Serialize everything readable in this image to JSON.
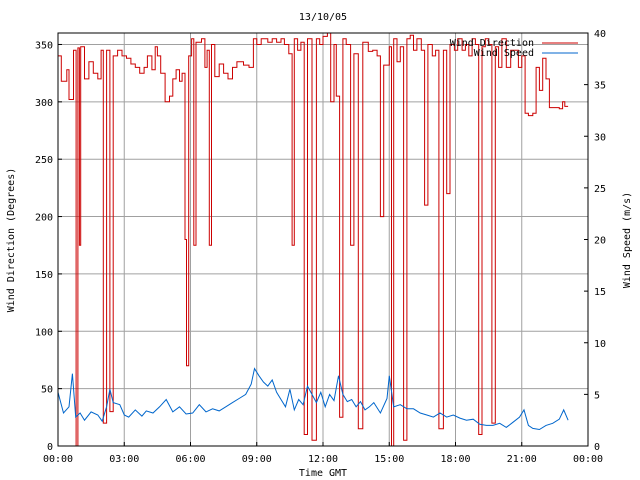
{
  "chart_data": {
    "type": "line",
    "title": "13/10/05",
    "xlabel": "Time GMT",
    "ylabel_left": "Wind Direction (Degrees)",
    "ylabel_right": "Wind Speed (m/s)",
    "x_unit": "hours GMT",
    "xlim": [
      0,
      24
    ],
    "ylim_left": [
      0,
      360
    ],
    "ylim_right": [
      0,
      40
    ],
    "x_ticks": [
      {
        "value": 0,
        "label": "00:00"
      },
      {
        "value": 3,
        "label": "03:00"
      },
      {
        "value": 6,
        "label": "06:00"
      },
      {
        "value": 9,
        "label": "09:00"
      },
      {
        "value": 12,
        "label": "12:00"
      },
      {
        "value": 15,
        "label": "15:00"
      },
      {
        "value": 18,
        "label": "18:00"
      },
      {
        "value": 21,
        "label": "21:00"
      },
      {
        "value": 24,
        "label": "00:00"
      }
    ],
    "y_ticks_left": [
      0,
      50,
      100,
      150,
      200,
      250,
      300,
      350
    ],
    "y_ticks_right": [
      0,
      5,
      10,
      15,
      20,
      25,
      30,
      35,
      40
    ],
    "grid": true,
    "legend_position": "top-right",
    "series": [
      {
        "name": "Wind Direction",
        "axis": "left",
        "color": "#cc0000",
        "step": true,
        "points": [
          [
            0.0,
            340
          ],
          [
            0.15,
            318
          ],
          [
            0.4,
            328
          ],
          [
            0.5,
            302
          ],
          [
            0.7,
            345
          ],
          [
            0.82,
            0
          ],
          [
            0.9,
            347
          ],
          [
            0.97,
            175
          ],
          [
            1.03,
            348
          ],
          [
            1.2,
            320
          ],
          [
            1.4,
            335
          ],
          [
            1.6,
            325
          ],
          [
            1.8,
            320
          ],
          [
            1.95,
            345
          ],
          [
            2.05,
            20
          ],
          [
            2.2,
            345
          ],
          [
            2.35,
            30
          ],
          [
            2.5,
            340
          ],
          [
            2.7,
            345
          ],
          [
            2.9,
            340
          ],
          [
            3.1,
            338
          ],
          [
            3.3,
            333
          ],
          [
            3.5,
            330
          ],
          [
            3.7,
            325
          ],
          [
            3.9,
            330
          ],
          [
            4.05,
            340
          ],
          [
            4.25,
            328
          ],
          [
            4.4,
            348
          ],
          [
            4.5,
            340
          ],
          [
            4.65,
            325
          ],
          [
            4.85,
            300
          ],
          [
            5.05,
            305
          ],
          [
            5.2,
            320
          ],
          [
            5.35,
            328
          ],
          [
            5.5,
            318
          ],
          [
            5.62,
            325
          ],
          [
            5.75,
            180
          ],
          [
            5.82,
            70
          ],
          [
            5.92,
            340
          ],
          [
            6.05,
            355
          ],
          [
            6.15,
            175
          ],
          [
            6.25,
            352
          ],
          [
            6.5,
            355
          ],
          [
            6.65,
            330
          ],
          [
            6.75,
            345
          ],
          [
            6.85,
            175
          ],
          [
            6.95,
            350
          ],
          [
            7.1,
            322
          ],
          [
            7.3,
            333
          ],
          [
            7.5,
            325
          ],
          [
            7.7,
            320
          ],
          [
            7.9,
            330
          ],
          [
            8.1,
            335
          ],
          [
            8.4,
            332
          ],
          [
            8.65,
            330
          ],
          [
            8.85,
            355
          ],
          [
            9.0,
            350
          ],
          [
            9.2,
            355
          ],
          [
            9.5,
            352
          ],
          [
            9.7,
            355
          ],
          [
            9.9,
            352
          ],
          [
            10.1,
            355
          ],
          [
            10.25,
            350
          ],
          [
            10.45,
            342
          ],
          [
            10.6,
            175
          ],
          [
            10.7,
            355
          ],
          [
            10.85,
            345
          ],
          [
            11.0,
            352
          ],
          [
            11.15,
            10
          ],
          [
            11.3,
            355
          ],
          [
            11.5,
            5
          ],
          [
            11.7,
            355
          ],
          [
            11.85,
            350
          ],
          [
            12.0,
            357
          ],
          [
            12.2,
            360
          ],
          [
            12.35,
            300
          ],
          [
            12.5,
            350
          ],
          [
            12.6,
            305
          ],
          [
            12.75,
            25
          ],
          [
            12.9,
            355
          ],
          [
            13.05,
            350
          ],
          [
            13.25,
            175
          ],
          [
            13.4,
            342
          ],
          [
            13.6,
            15
          ],
          [
            13.8,
            352
          ],
          [
            14.05,
            344
          ],
          [
            14.25,
            345
          ],
          [
            14.45,
            340
          ],
          [
            14.6,
            200
          ],
          [
            14.75,
            332
          ],
          [
            15.0,
            348
          ],
          [
            15.1,
            0
          ],
          [
            15.2,
            355
          ],
          [
            15.35,
            335
          ],
          [
            15.5,
            348
          ],
          [
            15.65,
            5
          ],
          [
            15.8,
            355
          ],
          [
            15.95,
            358
          ],
          [
            16.1,
            345
          ],
          [
            16.25,
            355
          ],
          [
            16.45,
            345
          ],
          [
            16.6,
            210
          ],
          [
            16.75,
            350
          ],
          [
            16.95,
            340
          ],
          [
            17.1,
            345
          ],
          [
            17.25,
            15
          ],
          [
            17.45,
            345
          ],
          [
            17.6,
            220
          ],
          [
            17.75,
            350
          ],
          [
            17.95,
            345
          ],
          [
            18.1,
            355
          ],
          [
            18.3,
            345
          ],
          [
            18.45,
            350
          ],
          [
            18.6,
            340
          ],
          [
            18.75,
            355
          ],
          [
            18.9,
            350
          ],
          [
            19.05,
            10
          ],
          [
            19.2,
            348
          ],
          [
            19.35,
            355
          ],
          [
            19.5,
            350
          ],
          [
            19.65,
            20
          ],
          [
            19.8,
            348
          ],
          [
            19.95,
            330
          ],
          [
            20.1,
            355
          ],
          [
            20.3,
            330
          ],
          [
            20.5,
            345
          ],
          [
            20.7,
            345
          ],
          [
            20.85,
            330
          ],
          [
            21.0,
            340
          ],
          [
            21.15,
            290
          ],
          [
            21.3,
            288
          ],
          [
            21.5,
            290
          ],
          [
            21.65,
            330
          ],
          [
            21.8,
            310
          ],
          [
            21.95,
            338
          ],
          [
            22.1,
            320
          ],
          [
            22.25,
            295
          ],
          [
            22.5,
            295
          ],
          [
            22.7,
            294
          ],
          [
            22.85,
            300
          ],
          [
            22.95,
            296
          ],
          [
            23.1,
            296
          ]
        ]
      },
      {
        "name": "Wind Speed",
        "axis": "right",
        "color": "#0066cc",
        "step": false,
        "points": [
          [
            0.0,
            5.2
          ],
          [
            0.25,
            3.2
          ],
          [
            0.5,
            3.8
          ],
          [
            0.65,
            7.0
          ],
          [
            0.8,
            2.8
          ],
          [
            1.0,
            3.2
          ],
          [
            1.2,
            2.5
          ],
          [
            1.5,
            3.3
          ],
          [
            1.8,
            3.0
          ],
          [
            2.0,
            2.4
          ],
          [
            2.2,
            3.8
          ],
          [
            2.35,
            5.5
          ],
          [
            2.5,
            4.2
          ],
          [
            2.8,
            4.0
          ],
          [
            3.0,
            3.0
          ],
          [
            3.2,
            2.8
          ],
          [
            3.5,
            3.5
          ],
          [
            3.8,
            2.9
          ],
          [
            4.0,
            3.4
          ],
          [
            4.3,
            3.2
          ],
          [
            4.6,
            3.8
          ],
          [
            4.9,
            4.5
          ],
          [
            5.2,
            3.3
          ],
          [
            5.5,
            3.8
          ],
          [
            5.8,
            3.1
          ],
          [
            6.1,
            3.2
          ],
          [
            6.4,
            4.0
          ],
          [
            6.7,
            3.3
          ],
          [
            7.0,
            3.6
          ],
          [
            7.3,
            3.4
          ],
          [
            7.6,
            3.8
          ],
          [
            7.9,
            4.2
          ],
          [
            8.2,
            4.6
          ],
          [
            8.5,
            5.0
          ],
          [
            8.75,
            6.0
          ],
          [
            8.9,
            7.5
          ],
          [
            9.1,
            6.8
          ],
          [
            9.3,
            6.2
          ],
          [
            9.5,
            5.8
          ],
          [
            9.7,
            6.4
          ],
          [
            9.9,
            5.2
          ],
          [
            10.1,
            4.5
          ],
          [
            10.3,
            3.8
          ],
          [
            10.5,
            5.5
          ],
          [
            10.7,
            3.5
          ],
          [
            10.9,
            4.5
          ],
          [
            11.1,
            4.0
          ],
          [
            11.3,
            5.8
          ],
          [
            11.5,
            5.0
          ],
          [
            11.7,
            4.2
          ],
          [
            11.9,
            5.2
          ],
          [
            12.1,
            3.8
          ],
          [
            12.3,
            5.0
          ],
          [
            12.5,
            4.4
          ],
          [
            12.7,
            6.8
          ],
          [
            12.9,
            5.0
          ],
          [
            13.1,
            4.3
          ],
          [
            13.3,
            4.5
          ],
          [
            13.5,
            3.8
          ],
          [
            13.7,
            4.3
          ],
          [
            13.9,
            3.5
          ],
          [
            14.1,
            3.8
          ],
          [
            14.3,
            4.2
          ],
          [
            14.6,
            3.2
          ],
          [
            14.9,
            4.6
          ],
          [
            15.0,
            6.8
          ],
          [
            15.2,
            3.8
          ],
          [
            15.5,
            4.0
          ],
          [
            15.8,
            3.6
          ],
          [
            16.1,
            3.6
          ],
          [
            16.4,
            3.2
          ],
          [
            16.7,
            3.0
          ],
          [
            17.0,
            2.8
          ],
          [
            17.3,
            3.2
          ],
          [
            17.6,
            2.8
          ],
          [
            17.9,
            3.0
          ],
          [
            18.2,
            2.7
          ],
          [
            18.5,
            2.5
          ],
          [
            18.8,
            2.6
          ],
          [
            19.1,
            2.1
          ],
          [
            19.4,
            2.0
          ],
          [
            19.7,
            2.0
          ],
          [
            20.0,
            2.2
          ],
          [
            20.3,
            1.8
          ],
          [
            20.6,
            2.3
          ],
          [
            20.9,
            2.8
          ],
          [
            21.1,
            3.5
          ],
          [
            21.3,
            2.0
          ],
          [
            21.5,
            1.7
          ],
          [
            21.8,
            1.6
          ],
          [
            22.1,
            2.0
          ],
          [
            22.4,
            2.2
          ],
          [
            22.7,
            2.6
          ],
          [
            22.9,
            3.5
          ],
          [
            23.1,
            2.5
          ]
        ]
      }
    ]
  }
}
